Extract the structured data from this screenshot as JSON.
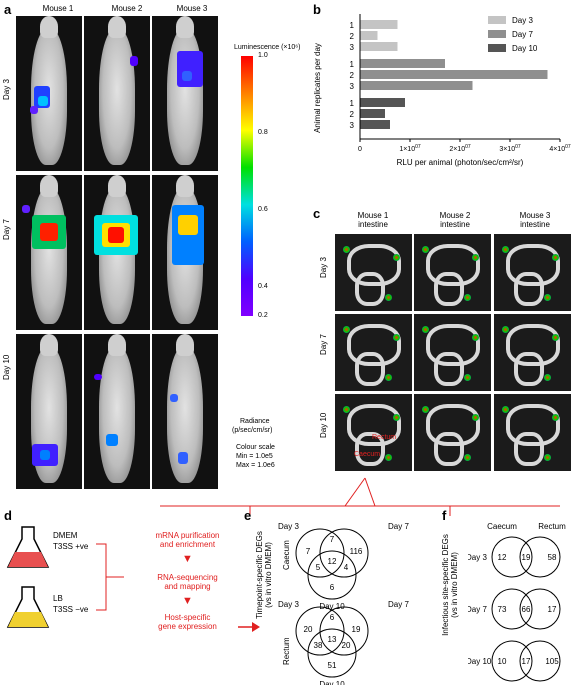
{
  "panel_a": {
    "label": "a",
    "mice": [
      "Mouse 1",
      "Mouse 2",
      "Mouse 3"
    ],
    "days": [
      "Day 3",
      "Day 7",
      "Day 10"
    ],
    "colorbar": {
      "title": "Luminescence (×10⁶)",
      "ticks": [
        "1.0",
        "0.8",
        "0.6",
        "0.4",
        "0.2"
      ],
      "radiance_label": "Radiance",
      "radiance_unit": "(p/sec/cm/sr)",
      "scale_title": "Colour scale",
      "min": "Min = 1.0e5",
      "max": "Max = 1.0e6"
    }
  },
  "panel_b": {
    "label": "b",
    "xlabel": "RLU per animal (photon/sec/cm²/sr)",
    "ylabel": "Animal replicates per day"
  },
  "chart_data": {
    "type": "bar",
    "orientation": "horizontal",
    "ylabel": "Animal replicates per day",
    "xlabel": "RLU per animal (photon/sec/cm²/sr)",
    "xlim": [
      0,
      40000000
    ],
    "xticks": [
      "0",
      "1×10⁰⁷",
      "2×10⁰⁷",
      "3×10⁰⁷",
      "4×10⁰⁷"
    ],
    "legend_position": "top-right",
    "series": [
      {
        "name": "Day 3",
        "color": "#c4c4c4",
        "categories": [
          "1",
          "2",
          "3"
        ],
        "values": [
          7500000,
          3500000,
          7500000
        ]
      },
      {
        "name": "Day 7",
        "color": "#8f8f8f",
        "categories": [
          "1",
          "2",
          "3"
        ],
        "values": [
          17000000,
          37500000,
          22500000
        ]
      },
      {
        "name": "Day 10",
        "color": "#555555",
        "categories": [
          "1",
          "2",
          "3"
        ],
        "values": [
          9000000,
          5000000,
          6000000
        ]
      }
    ]
  },
  "panel_c": {
    "label": "c",
    "columns": [
      "Mouse 1\nintestine",
      "Mouse 2\nintestine",
      "Mouse 3\nintestine"
    ],
    "col1": [
      "Mouse 1",
      "intestine"
    ],
    "col2": [
      "Mouse 2",
      "intestine"
    ],
    "col3": [
      "Mouse 3",
      "intestine"
    ],
    "days": [
      "Day 3",
      "Day 7",
      "Day 10"
    ],
    "caecum": "Caecum",
    "rectum": "Rectum"
  },
  "panel_d": {
    "label": "d",
    "flask1": [
      "DMEM",
      "T3SS +ve"
    ],
    "flask2": [
      "LB",
      "T3SS −ve"
    ],
    "steps": [
      "mRNA purification",
      "and enrichment",
      "RNA-sequencing",
      "and mapping",
      "Host-specific",
      "gene expression"
    ]
  },
  "panel_e": {
    "label": "e",
    "ylabel": [
      "Timepoint-specific DEGs",
      "(vs in vitro DMEM)"
    ],
    "caecum": {
      "label": "Caecum",
      "sets": [
        "Day 3",
        "Day 7",
        "Day 10"
      ],
      "numbers": [
        "7",
        "7",
        "116",
        "5",
        "12",
        "4",
        "6"
      ]
    },
    "rectum": {
      "label": "Rectum",
      "sets": [
        "Day 3",
        "Day 7",
        "Day 10"
      ],
      "numbers": [
        "20",
        "6",
        "19",
        "38",
        "13",
        "20",
        "51"
      ]
    }
  },
  "panel_f": {
    "label": "f",
    "ylabel": [
      "Infectious site-specific DEGs",
      "(vs in vitro DMEM)"
    ],
    "headers": [
      "Caecum",
      "Rectum"
    ],
    "rows": [
      {
        "day": "Day 3",
        "left": "12",
        "mid": "19",
        "right": "58"
      },
      {
        "day": "Day 7",
        "left": "73",
        "mid": "66",
        "right": "17"
      },
      {
        "day": "Day 10",
        "left": "10",
        "mid": "17",
        "right": "105"
      }
    ]
  }
}
